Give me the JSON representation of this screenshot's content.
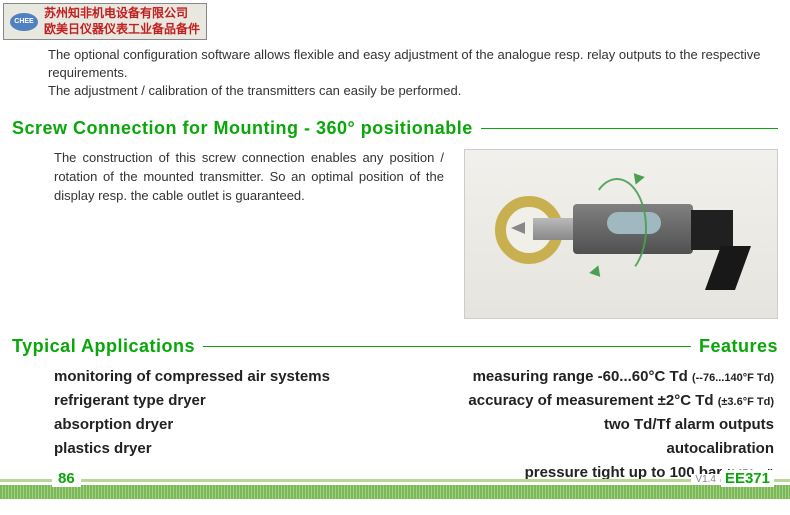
{
  "header": {
    "logo_text": "CHEE",
    "line1": "苏州知非机电设备有限公司",
    "line2": "欧美日仪器仪表工业备品备件"
  },
  "intro": {
    "line1": "The optional configuration software allows flexible and easy adjustment of the analogue resp. relay outputs to the respective requirements.",
    "line2": "The adjustment / calibration of the transmitters can easily be performed."
  },
  "screw": {
    "title": "Screw Connection for Mounting - 360° positionable",
    "text": "The construction of this screw connection enables any position / rotation of the mounted transmitter. So an optimal position of the display resp. the cable outlet is guaranteed."
  },
  "applications": {
    "title_left": "Typical Applications",
    "title_right": "Features",
    "left_items": [
      "monitoring of compressed air systems",
      "refrigerant type dryer",
      "absorption dryer",
      "plastics dryer"
    ],
    "right_items": [
      {
        "main": "measuring range  -60...60°C Td ",
        "note": "(--76...140°F Td)"
      },
      {
        "main": "accuracy of measurement ±2°C Td ",
        "note": "(±3.6°F Td)"
      },
      {
        "main": "two Td/Tf alarm outputs",
        "note": ""
      },
      {
        "main": "autocalibration",
        "note": ""
      },
      {
        "main": "pressure tight up to 100 bar ",
        "note": "(1450psi)"
      }
    ]
  },
  "footer": {
    "page": "86",
    "version": "V1.4",
    "model": "EE371"
  },
  "colors": {
    "accent": "#09a709",
    "header_bg": "#e8e8e0",
    "header_text": "#c02020"
  }
}
